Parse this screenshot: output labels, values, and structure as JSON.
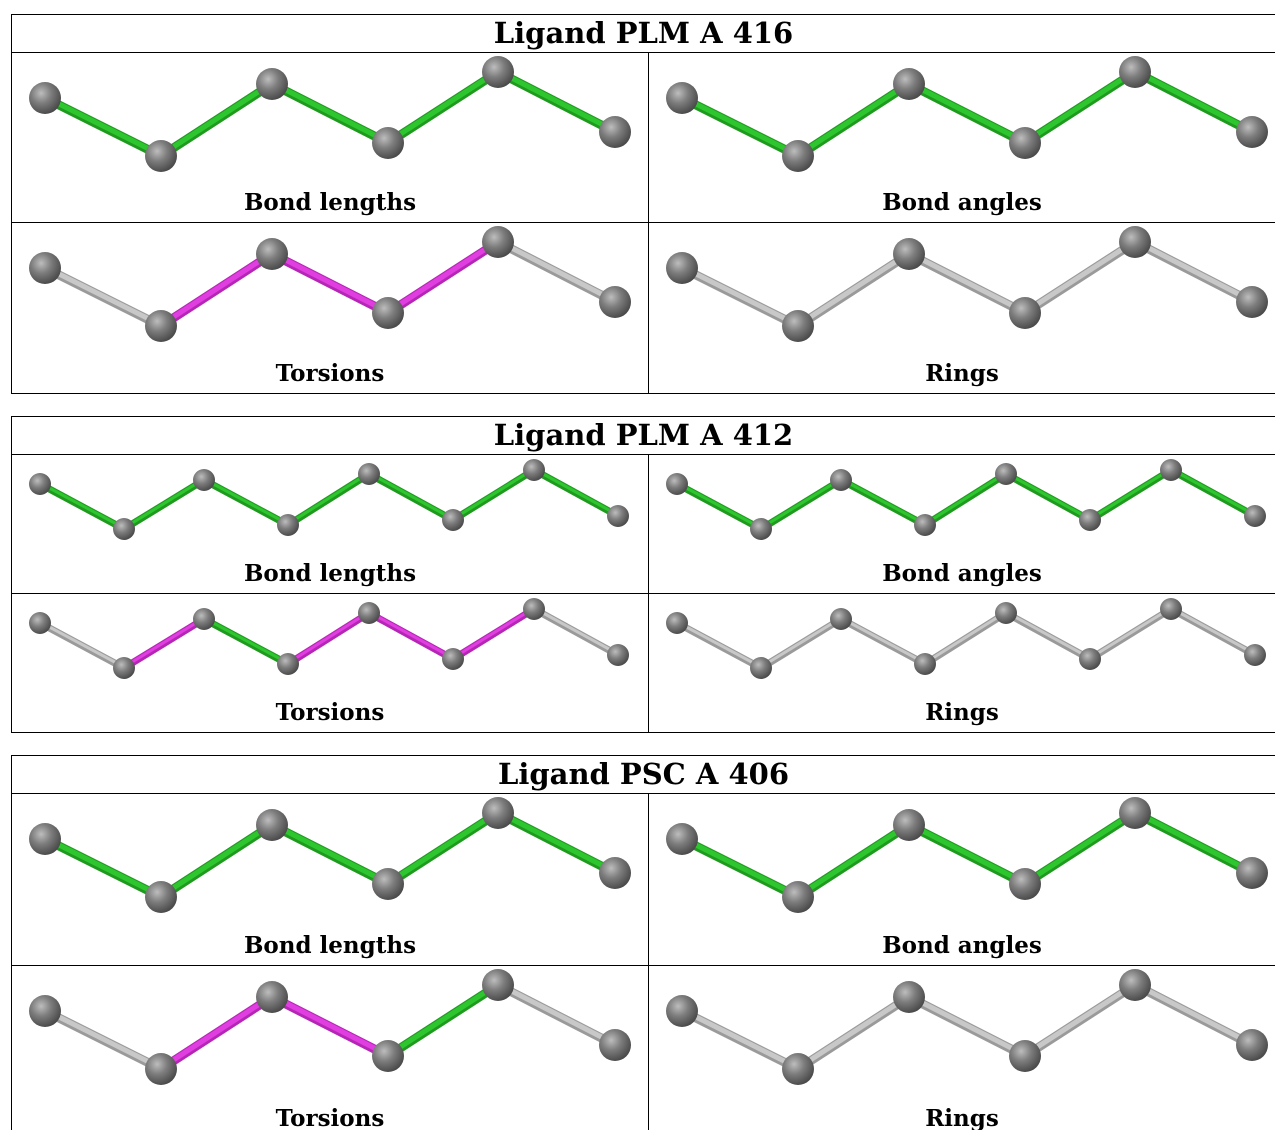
{
  "colors": {
    "bond_green": "#2ec62e",
    "bond_green_dark": "#1f9a1f",
    "bond_magenta": "#e13ee1",
    "bond_magenta_dark": "#b626b6",
    "bond_gray": "#c8c8c8",
    "bond_gray_dark": "#9a9a9a",
    "atom": "#7a7a7a",
    "atom_dark": "#4a4a4a",
    "atom_light": "#b8b8b8"
  },
  "ligands": [
    {
      "title": "Ligand PLM A 416",
      "panels": [
        {
          "caption": "Bond lengths",
          "bonds": [
            "green",
            "green",
            "green",
            "green",
            "green"
          ]
        },
        {
          "caption": "Bond angles",
          "bonds": [
            "green",
            "green",
            "green",
            "green",
            "green"
          ]
        },
        {
          "caption": "Torsions",
          "bonds": [
            "gray",
            "magenta",
            "magenta",
            "magenta",
            "gray"
          ]
        },
        {
          "caption": "Rings",
          "bonds": [
            "gray",
            "gray",
            "gray",
            "gray",
            "gray"
          ]
        }
      ]
    },
    {
      "title": "Ligand PLM A 412",
      "panels": [
        {
          "caption": "Bond lengths",
          "bonds": [
            "green",
            "green",
            "green",
            "green",
            "green",
            "green",
            "green"
          ]
        },
        {
          "caption": "Bond angles",
          "bonds": [
            "green",
            "green",
            "green",
            "green",
            "green",
            "green",
            "green"
          ]
        },
        {
          "caption": "Torsions",
          "bonds": [
            "gray",
            "magenta",
            "green",
            "magenta",
            "magenta",
            "magenta",
            "gray"
          ]
        },
        {
          "caption": "Rings",
          "bonds": [
            "gray",
            "gray",
            "gray",
            "gray",
            "gray",
            "gray",
            "gray"
          ]
        }
      ]
    },
    {
      "title": "Ligand PSC A 406",
      "panels": [
        {
          "caption": "Bond lengths",
          "bonds": [
            "green",
            "green",
            "green",
            "green",
            "green"
          ]
        },
        {
          "caption": "Bond angles",
          "bonds": [
            "green",
            "green",
            "green",
            "green",
            "green"
          ]
        },
        {
          "caption": "Torsions",
          "bonds": [
            "gray",
            "magenta",
            "magenta",
            "green",
            "gray"
          ]
        },
        {
          "caption": "Rings",
          "bonds": [
            "gray",
            "gray",
            "gray",
            "gray",
            "gray"
          ]
        }
      ]
    }
  ]
}
